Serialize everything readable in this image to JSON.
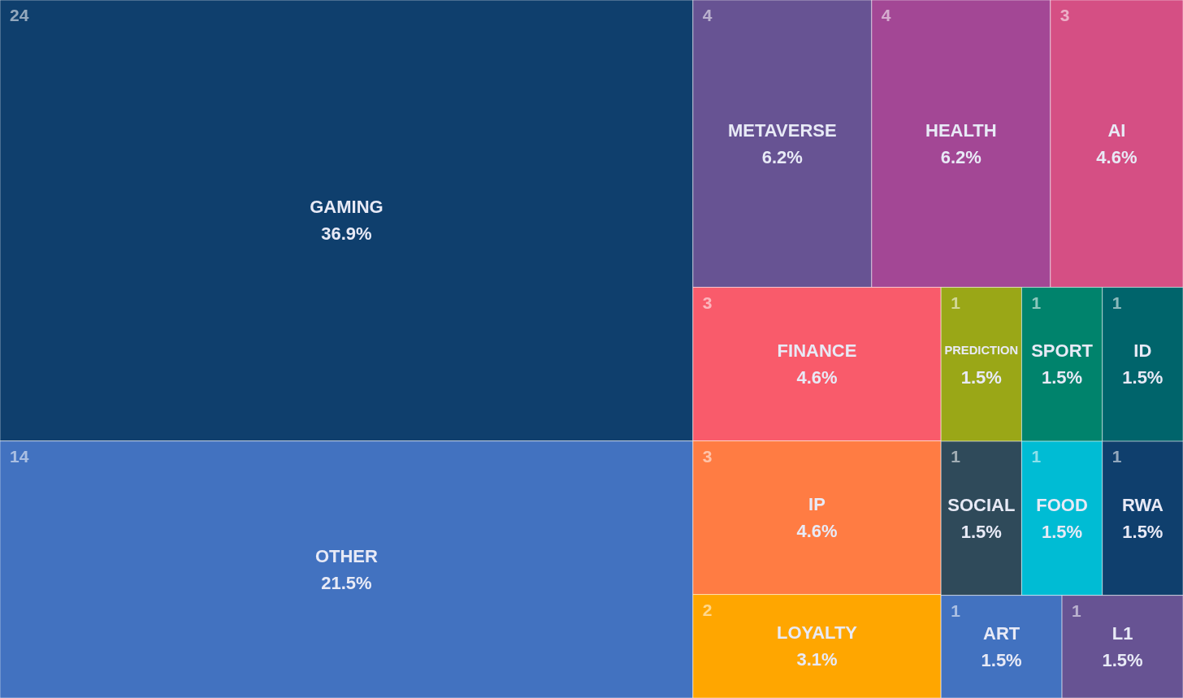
{
  "chart_data": {
    "type": "other",
    "categories": [
      "GAMING",
      "OTHER",
      "METAVERSE",
      "HEALTH",
      "AI",
      "FINANCE",
      "IP",
      "LOYALTY",
      "PREDICTION",
      "SPORT",
      "ID",
      "SOCIAL",
      "FOOD",
      "RWA",
      "ART",
      "L1"
    ],
    "values": [
      36.9,
      21.5,
      6.2,
      6.2,
      4.6,
      4.6,
      4.6,
      3.1,
      1.5,
      1.5,
      1.5,
      1.5,
      1.5,
      1.5,
      1.5,
      1.5
    ],
    "value_labels": [
      "36.9%",
      "21.5%",
      "6.2%",
      "6.2%",
      "4.6%",
      "4.6%",
      "4.6%",
      "3.1%",
      "1.5%",
      "1.5%",
      "1.5%",
      "1.5%",
      "1.5%",
      "1.5%",
      "1.5%",
      "1.5%"
    ],
    "annotations": [
      "24",
      "14",
      "4",
      "4",
      "3",
      "3",
      "3",
      "2",
      "1",
      "1",
      "1",
      "1",
      "1",
      "1",
      "1",
      "1"
    ],
    "colors": [
      "#0f3f6d",
      "#4272c0",
      "#675393",
      "#a34795",
      "#d54f84",
      "#f95b6b",
      "#ff7c43",
      "#ffa600",
      "#9aa717",
      "#00836c",
      "#00646b",
      "#2f4a5a",
      "#00bcd4",
      "#0f3f6d",
      "#4272c0",
      "#675393"
    ]
  }
}
